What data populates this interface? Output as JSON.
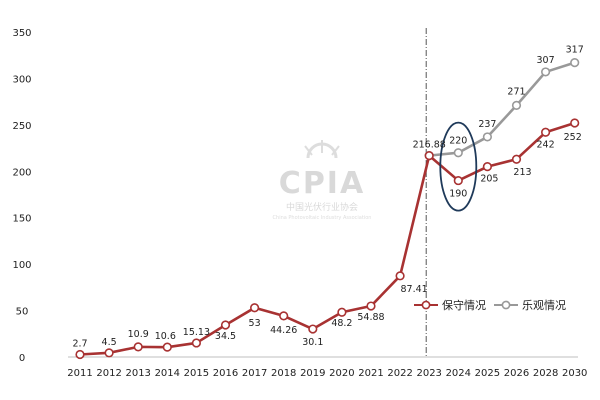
{
  "chart_data": {
    "type": "line",
    "title": "",
    "xlabel": "",
    "ylabel": "",
    "ylim": [
      0,
      350
    ],
    "yticks": [
      0,
      50,
      100,
      150,
      200,
      250,
      300,
      350
    ],
    "categories": [
      "2011",
      "2012",
      "2013",
      "2014",
      "2015",
      "2016",
      "2017",
      "2018",
      "2019",
      "2020",
      "2021",
      "2022",
      "2023",
      "2024",
      "2025",
      "2026",
      "2028",
      "2030"
    ],
    "series": [
      {
        "name": "保守情况",
        "color": "#a83232",
        "values": [
          2.7,
          4.5,
          10.9,
          10.6,
          15.13,
          34.5,
          53,
          44.26,
          30.1,
          48.2,
          54.88,
          87.41,
          216.88,
          190,
          205,
          213,
          242,
          252
        ],
        "labels": [
          "2.7",
          "4.5",
          "10.9",
          "10.6",
          "15.13",
          "34.5",
          "53",
          "44.26",
          "30.1",
          "48.2",
          "54.88",
          "87.41",
          "216.88",
          "190",
          "205",
          "213",
          "242",
          "252"
        ]
      },
      {
        "name": "乐观情况",
        "color": "#999999",
        "values": [
          null,
          null,
          null,
          null,
          null,
          null,
          null,
          null,
          null,
          null,
          null,
          null,
          216.88,
          220,
          237,
          271,
          307,
          317
        ],
        "labels": [
          "",
          "",
          "",
          "",
          "",
          "",
          "",
          "",
          "",
          "",
          "",
          "",
          "",
          "220",
          "237",
          "271",
          "307",
          "317"
        ]
      }
    ],
    "legend_position": "right",
    "grid": false,
    "reference_line": "2023",
    "highlight_ellipse": "2024"
  },
  "watermark": {
    "text": "CPIA",
    "subtitle": "中国光伏行业协会",
    "subtitle2": "China Photovoltaic Industry Association"
  }
}
